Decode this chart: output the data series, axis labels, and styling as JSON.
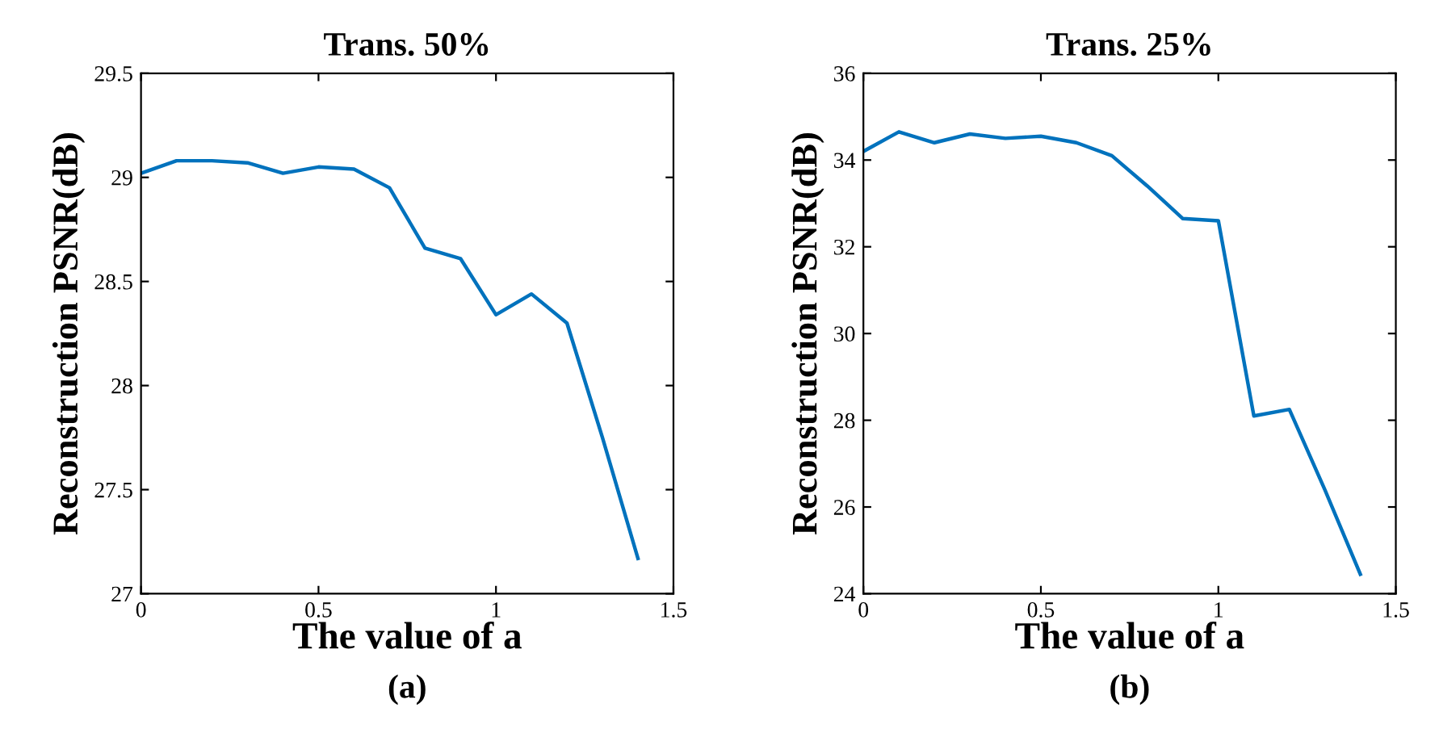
{
  "chart_data": [
    {
      "type": "line",
      "title": "Trans. 50%",
      "xlabel": "The value of a",
      "ylabel": "Reconstruction PSNR(dB)",
      "annotations": [
        "(a)"
      ],
      "x": [
        0,
        0.1,
        0.2,
        0.3,
        0.4,
        0.5,
        0.6,
        0.7,
        0.8,
        0.9,
        1.0,
        1.1,
        1.2,
        1.3,
        1.4
      ],
      "series": [
        {
          "color": "#0072bd",
          "values": [
            29.02,
            29.08,
            29.08,
            29.07,
            29.02,
            29.05,
            29.04,
            28.95,
            28.66,
            28.61,
            28.34,
            28.44,
            28.3,
            27.75,
            27.17
          ]
        }
      ],
      "xlim": [
        0,
        1.5
      ],
      "xticks": [
        0,
        0.5,
        1,
        1.5
      ],
      "ylim": [
        27,
        29.5
      ],
      "yticks": [
        27,
        27.5,
        28,
        28.5,
        29,
        29.5
      ],
      "grid": false,
      "legend": false
    },
    {
      "type": "line",
      "title": "Trans. 25%",
      "xlabel": "The value of a",
      "ylabel": "Reconstruction PSNR(dB)",
      "annotations": [
        "(b)"
      ],
      "x": [
        0,
        0.1,
        0.2,
        0.3,
        0.4,
        0.5,
        0.6,
        0.7,
        0.8,
        0.9,
        1.0,
        1.1,
        1.2,
        1.3,
        1.4
      ],
      "series": [
        {
          "color": "#0072bd",
          "values": [
            34.2,
            34.65,
            34.4,
            34.6,
            34.5,
            34.55,
            34.4,
            34.1,
            33.4,
            32.65,
            32.6,
            28.1,
            28.25,
            26.4,
            24.45
          ]
        }
      ],
      "xlim": [
        0,
        1.5
      ],
      "xticks": [
        0,
        0.5,
        1,
        1.5
      ],
      "ylim": [
        24,
        36
      ],
      "yticks": [
        24,
        26,
        28,
        30,
        32,
        34,
        36
      ],
      "grid": false,
      "legend": false
    }
  ]
}
